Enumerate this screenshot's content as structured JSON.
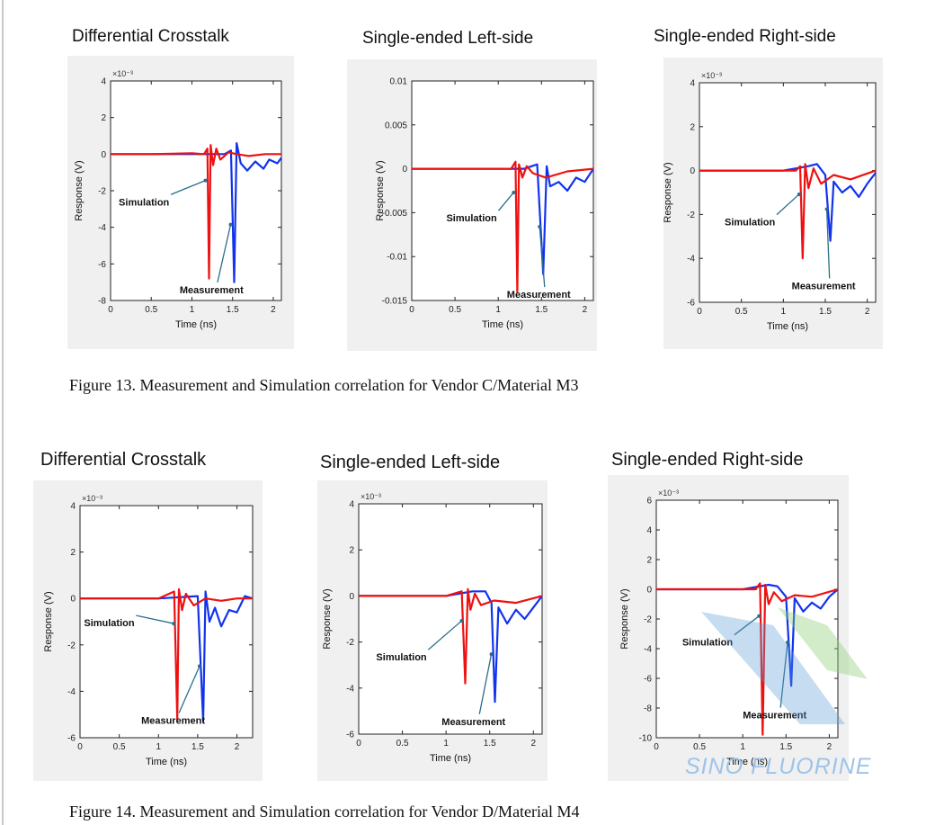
{
  "figures": [
    {
      "caption": "Figure 13.  Measurement and Simulation correlation for Vendor C/Material M3",
      "charts": [
        {
          "title": "Differential Crosstalk",
          "chart_data": {
            "type": "line",
            "xlabel": "Time (ns)",
            "ylabel": "Response (V)",
            "exponent": "×10⁻³",
            "xlim": [
              0,
              2.1
            ],
            "ylim": [
              -8,
              4
            ],
            "xticks": [
              "0",
              "0.5",
              "1",
              "1.5",
              "2"
            ],
            "yticks": [
              "4",
              "2",
              "0",
              "-2",
              "-4",
              "-6",
              "-8"
            ],
            "series": [
              {
                "color": "#ee1111",
                "x": [
                  0,
                  0.5,
                  1.0,
                  1.15,
                  1.19,
                  1.21,
                  1.23,
                  1.26,
                  1.3,
                  1.35,
                  1.45,
                  1.55,
                  1.7,
                  1.9,
                  2.1
                ],
                "y": [
                  0,
                  0,
                  0.05,
                  0,
                  0.3,
                  -6.8,
                  0.5,
                  -0.6,
                  0.3,
                  -0.3,
                  0.1,
                  0,
                  -0.1,
                  0,
                  0
                ]
              },
              {
                "color": "#1133ee",
                "x": [
                  0,
                  0.5,
                  1.0,
                  1.4,
                  1.48,
                  1.52,
                  1.55,
                  1.6,
                  1.68,
                  1.78,
                  1.88,
                  1.95,
                  2.05,
                  2.1
                ],
                "y": [
                  0,
                  0,
                  0,
                  0,
                  0.2,
                  -7,
                  0.6,
                  -0.5,
                  -0.9,
                  -0.4,
                  -0.8,
                  -0.3,
                  -0.5,
                  -0.2
                ]
              }
            ],
            "annotations": [
              {
                "text": "Simulation",
                "x": 0.1,
                "y": -2.8
              },
              {
                "text": "Measurement",
                "x": 0.85,
                "y": -7.6
              }
            ]
          }
        },
        {
          "title": "Single-ended Left-side",
          "chart_data": {
            "type": "line",
            "xlabel": "Time (ns)",
            "ylabel": "Response (V)",
            "exponent": "",
            "xlim": [
              0,
              2.1
            ],
            "ylim": [
              -0.015,
              0.01
            ],
            "xticks": [
              "0",
              "0.5",
              "1",
              "1.5",
              "2"
            ],
            "yticks": [
              "0.01",
              "0.005",
              "0",
              "-0.005",
              "-0.01",
              "-0.015"
            ],
            "series": [
              {
                "color": "#ee1111",
                "x": [
                  0,
                  0.5,
                  1.0,
                  1.15,
                  1.2,
                  1.22,
                  1.24,
                  1.28,
                  1.33,
                  1.4,
                  1.55,
                  1.8,
                  2.1
                ],
                "y": [
                  0,
                  0,
                  0,
                  0,
                  0.0008,
                  -0.014,
                  0.0005,
                  -0.001,
                  0.0003,
                  -0.0005,
                  -0.001,
                  -0.0003,
                  0
                ]
              },
              {
                "color": "#1133ee",
                "x": [
                  0,
                  0.5,
                  1.0,
                  1.3,
                  1.45,
                  1.52,
                  1.56,
                  1.6,
                  1.7,
                  1.8,
                  1.9,
                  2.0,
                  2.1
                ],
                "y": [
                  0,
                  0,
                  0,
                  0,
                  0.0005,
                  -0.012,
                  0.0003,
                  -0.002,
                  -0.0015,
                  -0.0025,
                  -0.001,
                  -0.0015,
                  0
                ]
              }
            ],
            "annotations": [
              {
                "text": "Simulation",
                "x": 0.4,
                "y": -0.006
              },
              {
                "text": "Measurement",
                "x": 1.1,
                "y": -0.0147
              }
            ]
          }
        },
        {
          "title": "Single-ended Right-side",
          "chart_data": {
            "type": "line",
            "xlabel": "Time (ns)",
            "ylabel": "Response (V)",
            "exponent": "×10⁻³",
            "xlim": [
              0,
              2.1
            ],
            "ylim": [
              -6,
              4
            ],
            "xticks": [
              "0",
              "0.5",
              "1",
              "1.5",
              "2"
            ],
            "yticks": [
              "4",
              "2",
              "0",
              "-2",
              "-4",
              "-6"
            ],
            "series": [
              {
                "color": "#ee1111",
                "x": [
                  0,
                  0.5,
                  1.0,
                  1.15,
                  1.2,
                  1.23,
                  1.26,
                  1.3,
                  1.36,
                  1.45,
                  1.6,
                  1.8,
                  2.1
                ],
                "y": [
                  0,
                  0,
                  0,
                  0,
                  0.2,
                  -4,
                  0.3,
                  -0.8,
                  0.1,
                  -0.6,
                  -0.2,
                  -0.4,
                  0
                ]
              },
              {
                "color": "#1133ee",
                "x": [
                  0,
                  0.5,
                  1.0,
                  1.3,
                  1.4,
                  1.5,
                  1.56,
                  1.6,
                  1.7,
                  1.8,
                  1.9,
                  2.0,
                  2.1
                ],
                "y": [
                  0,
                  0,
                  0,
                  0.2,
                  0.3,
                  -0.2,
                  -3.2,
                  -0.5,
                  -1,
                  -0.7,
                  -1.2,
                  -0.6,
                  -0.1
                ]
              }
            ],
            "annotations": [
              {
                "text": "Simulation",
                "x": 0.3,
                "y": -2.5
              },
              {
                "text": "Measurement",
                "x": 1.1,
                "y": -5.4
              }
            ]
          }
        }
      ]
    },
    {
      "caption": "Figure 14.  Measurement and Simulation correlation for Vendor D/Material M4",
      "charts": [
        {
          "title": "Differential Crosstalk",
          "chart_data": {
            "type": "line",
            "xlabel": "Time (ns)",
            "ylabel": "Response (V)",
            "exponent": "×10⁻³",
            "xlim": [
              0,
              2.2
            ],
            "ylim": [
              -6,
              4
            ],
            "xticks": [
              "0",
              "0.5",
              "1",
              "1.5",
              "2"
            ],
            "yticks": [
              "4",
              "2",
              "0",
              "-2",
              "-4",
              "-6"
            ],
            "series": [
              {
                "color": "#ee1111",
                "x": [
                  0,
                  0.5,
                  1.0,
                  1.2,
                  1.24,
                  1.26,
                  1.3,
                  1.35,
                  1.45,
                  1.6,
                  1.8,
                  2.0,
                  2.2
                ],
                "y": [
                  0,
                  0,
                  0,
                  0.3,
                  -5.2,
                  0.4,
                  -0.5,
                  0.2,
                  -0.3,
                  0,
                  -0.1,
                  0,
                  0
                ]
              },
              {
                "color": "#1133ee",
                "x": [
                  0,
                  0.5,
                  1.0,
                  1.5,
                  1.57,
                  1.6,
                  1.65,
                  1.72,
                  1.8,
                  1.9,
                  2.0,
                  2.1,
                  2.2
                ],
                "y": [
                  0,
                  0,
                  0,
                  0.1,
                  -5.3,
                  0.3,
                  -1,
                  -0.4,
                  -1.2,
                  -0.5,
                  -0.6,
                  0.1,
                  0
                ]
              }
            ],
            "annotations": [
              {
                "text": "Simulation",
                "x": 0.05,
                "y": -1.2
              },
              {
                "text": "Measurement",
                "x": 0.78,
                "y": -5.4
              }
            ]
          }
        },
        {
          "title": "Single-ended Left-side",
          "chart_data": {
            "type": "line",
            "xlabel": "Time (ns)",
            "ylabel": "Response (V)",
            "exponent": "×10⁻³",
            "xlim": [
              0,
              2.1
            ],
            "ylim": [
              -6,
              4
            ],
            "xticks": [
              "0",
              "0.5",
              "1",
              "1.5",
              "2"
            ],
            "yticks": [
              "4",
              "2",
              "0",
              "-2",
              "-4",
              "-6"
            ],
            "series": [
              {
                "color": "#ee1111",
                "x": [
                  0,
                  0.5,
                  1.0,
                  1.18,
                  1.22,
                  1.25,
                  1.28,
                  1.33,
                  1.4,
                  1.55,
                  1.8,
                  2.1
                ],
                "y": [
                  0,
                  0,
                  0,
                  0.2,
                  -3.8,
                  0.3,
                  -0.6,
                  0.1,
                  -0.4,
                  -0.2,
                  -0.3,
                  0
                ]
              },
              {
                "color": "#1133ee",
                "x": [
                  0,
                  0.5,
                  1.0,
                  1.3,
                  1.45,
                  1.52,
                  1.56,
                  1.6,
                  1.7,
                  1.8,
                  1.9,
                  2.0,
                  2.1
                ],
                "y": [
                  0,
                  0,
                  0,
                  0.2,
                  0.2,
                  -0.3,
                  -4.6,
                  -0.5,
                  -1.2,
                  -0.6,
                  -1,
                  -0.5,
                  0
                ]
              }
            ],
            "annotations": [
              {
                "text": "Simulation",
                "x": 0.2,
                "y": -2.8
              },
              {
                "text": "Measurement",
                "x": 0.95,
                "y": -5.6
              }
            ]
          }
        },
        {
          "title": "Single-ended Right-side",
          "chart_data": {
            "type": "line",
            "xlabel": "Time (ns)",
            "ylabel": "Response (V)",
            "exponent": "×10⁻³",
            "xlim": [
              0,
              2.1
            ],
            "ylim": [
              -10,
              6
            ],
            "xticks": [
              "0",
              "0.5",
              "1",
              "1.5",
              "2"
            ],
            "yticks": [
              "6",
              "4",
              "2",
              "0",
              "-2",
              "-4",
              "-6",
              "-8",
              "-10"
            ],
            "series": [
              {
                "color": "#ee1111",
                "x": [
                  0,
                  0.5,
                  1.0,
                  1.15,
                  1.2,
                  1.23,
                  1.26,
                  1.3,
                  1.36,
                  1.45,
                  1.6,
                  1.8,
                  2.1
                ],
                "y": [
                  0,
                  0,
                  0,
                  0,
                  0.4,
                  -9.8,
                  0.3,
                  -1,
                  -0.2,
                  -0.8,
                  -0.4,
                  -0.5,
                  0
                ]
              },
              {
                "color": "#1133ee",
                "x": [
                  0,
                  0.5,
                  1.0,
                  1.3,
                  1.4,
                  1.5,
                  1.56,
                  1.6,
                  1.7,
                  1.8,
                  1.9,
                  2.0,
                  2.1
                ],
                "y": [
                  0,
                  0,
                  0,
                  0.3,
                  0.2,
                  -0.5,
                  -6.5,
                  -0.6,
                  -1.5,
                  -0.9,
                  -1.3,
                  -0.5,
                  0
                ]
              }
            ],
            "annotations": [
              {
                "text": "Simulation",
                "x": 0.3,
                "y": -3.8
              },
              {
                "text": "Measurement",
                "x": 1.0,
                "y": -8.7
              }
            ]
          }
        }
      ]
    }
  ],
  "watermark": "SINO FLUORINE"
}
